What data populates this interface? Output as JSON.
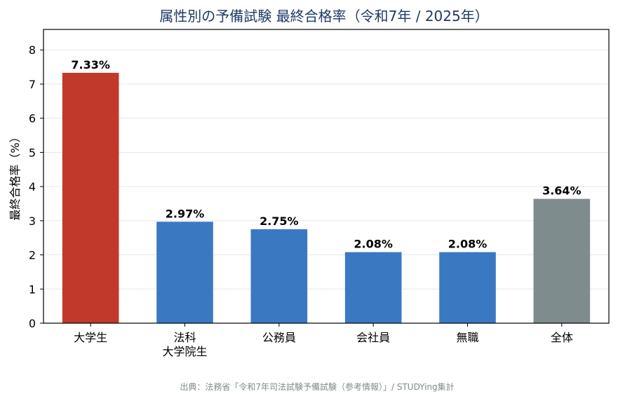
{
  "chart_data": {
    "type": "bar",
    "title": "属性別の予備試験 最終合格率（令和7年 / 2025年）",
    "ylabel": "最終合格率（%）",
    "xlabel": "",
    "categories": [
      [
        "大学生"
      ],
      [
        "法科",
        "大学院生"
      ],
      [
        "公務員"
      ],
      [
        "会社員"
      ],
      [
        "無職"
      ],
      [
        "全体"
      ]
    ],
    "values": [
      7.33,
      2.97,
      2.75,
      2.08,
      2.08,
      3.64
    ],
    "value_labels": [
      "7.33%",
      "2.97%",
      "2.75%",
      "2.08%",
      "2.08%",
      "3.64%"
    ],
    "bar_colors": [
      "#c0392b",
      "#3a78c2",
      "#3a78c2",
      "#3a78c2",
      "#3a78c2",
      "#7f8c8d"
    ],
    "ylim": [
      0,
      8.6
    ],
    "yticks": [
      0,
      1,
      2,
      3,
      4,
      5,
      6,
      7,
      8
    ],
    "grid": true,
    "source": "出典：法務省「令和7年司法試験予備試験（参考情報）」/ STUDYing集計"
  }
}
